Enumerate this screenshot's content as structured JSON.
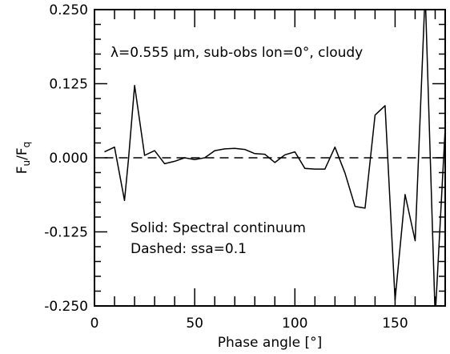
{
  "chart_data": {
    "type": "line",
    "title": "",
    "xlabel": "Phase angle [°]",
    "ylabel_main": "F",
    "ylabel_sub_num": "u",
    "ylabel_den": "F",
    "ylabel_sub_den": "q",
    "xlim": [
      0,
      175
    ],
    "ylim": [
      -0.25,
      0.25
    ],
    "xticks": [
      0,
      50,
      100,
      150
    ],
    "xtick_labels": [
      "0",
      "50",
      "100",
      "150"
    ],
    "yticks": [
      0.25,
      0.125,
      0.0,
      -0.125,
      -0.25
    ],
    "ytick_labels": [
      "0.250",
      "0.125",
      "0.000",
      "-0.125",
      "-0.250"
    ],
    "annotation_title": "λ=0.555 μm, sub-obs lon=0°, cloudy",
    "legend_lines": [
      "Solid: Spectral continuum",
      "Dashed: ssa=0.1"
    ],
    "series": [
      {
        "name": "Spectral continuum",
        "style": "solid",
        "x": [
          5,
          10,
          15,
          17,
          20,
          25,
          30,
          35,
          40,
          45,
          50,
          55,
          60,
          65,
          70,
          75,
          80,
          85,
          90,
          95,
          100,
          105,
          110,
          115,
          120,
          125,
          130,
          135,
          140,
          145,
          150,
          155,
          160,
          165,
          170,
          175
        ],
        "y": [
          0.01,
          0.018,
          -0.072,
          -0.002,
          0.122,
          0.004,
          0.012,
          -0.01,
          -0.006,
          0.0,
          -0.003,
          0.0,
          0.012,
          0.015,
          0.016,
          0.014,
          0.007,
          0.006,
          -0.008,
          0.005,
          0.01,
          -0.018,
          -0.019,
          -0.019,
          0.018,
          -0.026,
          -0.082,
          -0.085,
          0.072,
          0.088,
          -0.24,
          -0.062,
          -0.14,
          0.28,
          -0.27,
          0.05
        ]
      },
      {
        "name": "ssa=0.1",
        "style": "dashed",
        "x": [
          5,
          175
        ],
        "y": [
          0.0,
          0.0
        ]
      }
    ]
  }
}
